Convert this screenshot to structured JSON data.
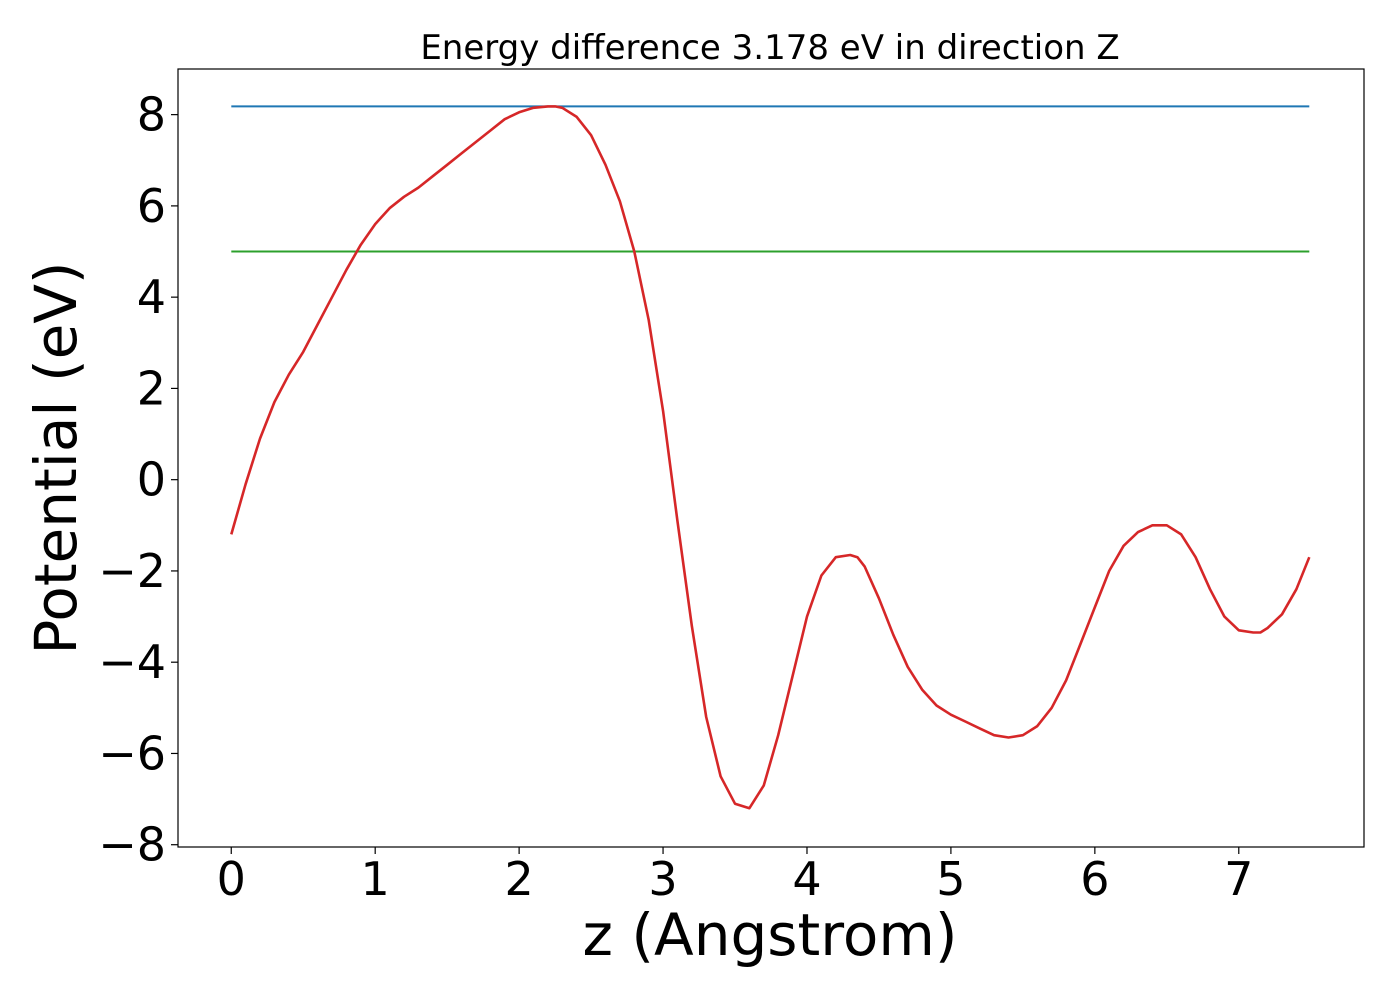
{
  "chart_data": {
    "type": "line",
    "title": "Energy difference 3.178 eV in direction Z",
    "xlabel": "z (Angstrom)",
    "ylabel": "Potential (eV)",
    "xlim": [
      -0.37,
      7.87
    ],
    "ylim": [
      -8.05,
      9.0
    ],
    "xticks": [
      0,
      1,
      2,
      3,
      4,
      5,
      6,
      7
    ],
    "xtick_labels": [
      "0",
      "1",
      "2",
      "3",
      "4",
      "5",
      "6",
      "7"
    ],
    "yticks": [
      -8,
      -6,
      -4,
      -2,
      0,
      2,
      4,
      6,
      8
    ],
    "ytick_labels": [
      "−8",
      "−6",
      "−4",
      "−2",
      "0",
      "2",
      "4",
      "6",
      "8"
    ],
    "grid": false,
    "series": [
      {
        "color": "#d62728",
        "x": [
          0,
          0.1,
          0.2,
          0.3,
          0.4,
          0.5,
          0.6,
          0.7,
          0.8,
          0.9,
          1.0,
          1.1,
          1.2,
          1.3,
          1.4,
          1.5,
          1.6,
          1.7,
          1.8,
          1.9,
          2.0,
          2.1,
          2.2,
          2.25,
          2.3,
          2.4,
          2.5,
          2.6,
          2.7,
          2.8,
          2.9,
          3.0,
          3.1,
          3.2,
          3.3,
          3.4,
          3.5,
          3.6,
          3.7,
          3.8,
          3.9,
          4.0,
          4.1,
          4.2,
          4.3,
          4.35,
          4.4,
          4.5,
          4.6,
          4.7,
          4.8,
          4.9,
          5.0,
          5.1,
          5.2,
          5.3,
          5.4,
          5.5,
          5.6,
          5.7,
          5.8,
          5.9,
          6.0,
          6.1,
          6.2,
          6.3,
          6.4,
          6.5,
          6.6,
          6.7,
          6.8,
          6.9,
          7.0,
          7.1,
          7.15,
          7.2,
          7.3,
          7.4,
          7.49
        ],
        "y": [
          -1.2,
          -0.1,
          0.9,
          1.7,
          2.3,
          2.8,
          3.4,
          4.0,
          4.6,
          5.15,
          5.6,
          5.95,
          6.2,
          6.4,
          6.65,
          6.9,
          7.15,
          7.4,
          7.65,
          7.9,
          8.05,
          8.15,
          8.18,
          8.18,
          8.15,
          7.95,
          7.55,
          6.9,
          6.1,
          5.0,
          3.5,
          1.5,
          -0.9,
          -3.2,
          -5.2,
          -6.5,
          -7.1,
          -7.2,
          -6.7,
          -5.6,
          -4.3,
          -3.0,
          -2.1,
          -1.7,
          -1.65,
          -1.7,
          -1.9,
          -2.6,
          -3.4,
          -4.1,
          -4.6,
          -4.95,
          -5.15,
          -5.3,
          -5.45,
          -5.6,
          -5.65,
          -5.6,
          -5.4,
          -5.0,
          -4.4,
          -3.6,
          -2.8,
          -2.0,
          -1.45,
          -1.15,
          -1.0,
          -1.0,
          -1.2,
          -1.7,
          -2.4,
          -3.0,
          -3.3,
          -3.35,
          -3.35,
          -3.25,
          -2.95,
          -2.4,
          -1.7
        ]
      },
      {
        "color": "#1f77b4",
        "x": [
          0,
          7.49
        ],
        "y": [
          8.18,
          8.18
        ]
      },
      {
        "color": "#2ca02c",
        "x": [
          0,
          7.49
        ],
        "y": [
          5.0,
          5.0
        ]
      }
    ]
  }
}
